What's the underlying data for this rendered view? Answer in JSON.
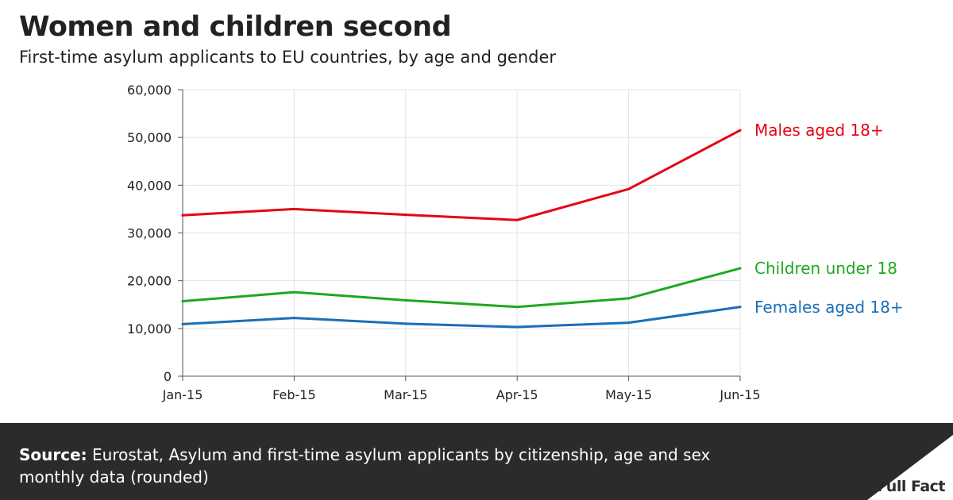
{
  "header": {
    "title": "Women and children second",
    "subtitle": "First-time asylum applicants to EU countries, by age and gender"
  },
  "footer": {
    "source_label": "Source:",
    "source_text": "Eurostat, Asylum and first-time asylum applicants by citizenship, age and sex monthly data (rounded)",
    "brand": "Full Fact"
  },
  "colors": {
    "males": "#e30613",
    "children": "#1ea81e",
    "females": "#1a6fb8",
    "grid": "#e3e3e3",
    "footer_bg": "#2b2b2b"
  },
  "chart_data": {
    "type": "line",
    "title": "Women and children second",
    "subtitle": "First-time asylum applicants to EU countries, by age and gender",
    "categories": [
      "Jan-15",
      "Feb-15",
      "Mar-15",
      "Apr-15",
      "May-15",
      "Jun-15"
    ],
    "y_ticks": [
      "0",
      "10,000",
      "20,000",
      "30,000",
      "40,000",
      "50,000",
      "60,000"
    ],
    "ylim": [
      0,
      60000
    ],
    "grid": true,
    "series": [
      {
        "name": "Males aged 18+",
        "color": "#e30613",
        "values": [
          33700,
          35000,
          33800,
          32700,
          39200,
          51500
        ]
      },
      {
        "name": "Children under 18",
        "color": "#1ea81e",
        "values": [
          15700,
          17600,
          15900,
          14500,
          16300,
          22600
        ]
      },
      {
        "name": "Females aged 18+",
        "color": "#1a6fb8",
        "values": [
          10900,
          12200,
          11000,
          10300,
          11200,
          14500
        ]
      }
    ]
  }
}
